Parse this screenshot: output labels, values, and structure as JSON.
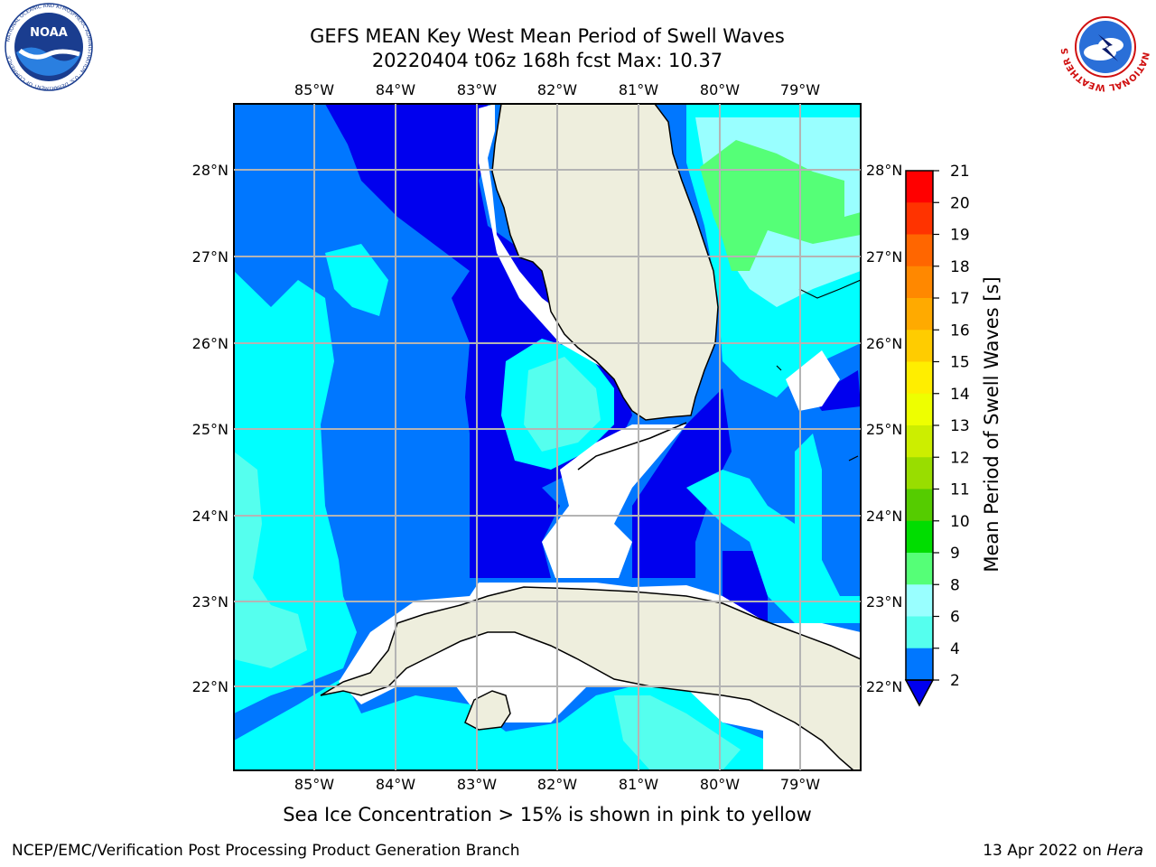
{
  "title_line1": "GEFS MEAN Key West Mean Period of Swell Waves",
  "title_line2": "20220404 t06z 168h fcst   Max: 10.37",
  "lon_labels": [
    "85°W",
    "84°W",
    "83°W",
    "82°W",
    "81°W",
    "80°W",
    "79°W"
  ],
  "lat_labels": [
    "28°N",
    "27°N",
    "26°N",
    "25°N",
    "24°N",
    "23°N",
    "22°N"
  ],
  "colorbar": {
    "title": "Mean Period of Swell Waves [s]",
    "ticks": [
      "21",
      "20",
      "19",
      "18",
      "17",
      "16",
      "15",
      "14",
      "13",
      "12",
      "11",
      "10",
      "9",
      "8",
      "6",
      "4",
      "2"
    ],
    "colors": [
      "#ff0000",
      "#ff3300",
      "#ff6600",
      "#ff8800",
      "#ffaa00",
      "#ffcc00",
      "#ffee00",
      "#eeff00",
      "#ccee00",
      "#99dd00",
      "#55cc00",
      "#00dd00",
      "#55ff77",
      "#99ffff",
      "#55ffee",
      "#00ffff",
      "#0077ff"
    ],
    "extend_color": "#0000ee"
  },
  "field_colors": {
    "deep": "#0000ee",
    "blue": "#0077ff",
    "cyan": "#00ffff",
    "lightcyan": "#55ffee",
    "paleaqua": "#99ffff",
    "green": "#55ff77",
    "land": "#eeeedd"
  },
  "sea_ice_note": "Sea Ice Concentration > 15% is shown in pink to yellow",
  "footer_left": "NCEP/EMC/Verification Post Processing Product Generation Branch",
  "footer_right_prefix": "13 Apr 2022 on ",
  "footer_right_host": "Hera",
  "logos": {
    "noaa_text": "NOAA",
    "noaa_ring": "NATIONAL OCEANIC AND ATMOSPHERIC ADMINISTRATION · U.S. DEPARTMENT OF COMMERCE",
    "nws_ring": "NATIONAL WEATHER SERVICE"
  }
}
